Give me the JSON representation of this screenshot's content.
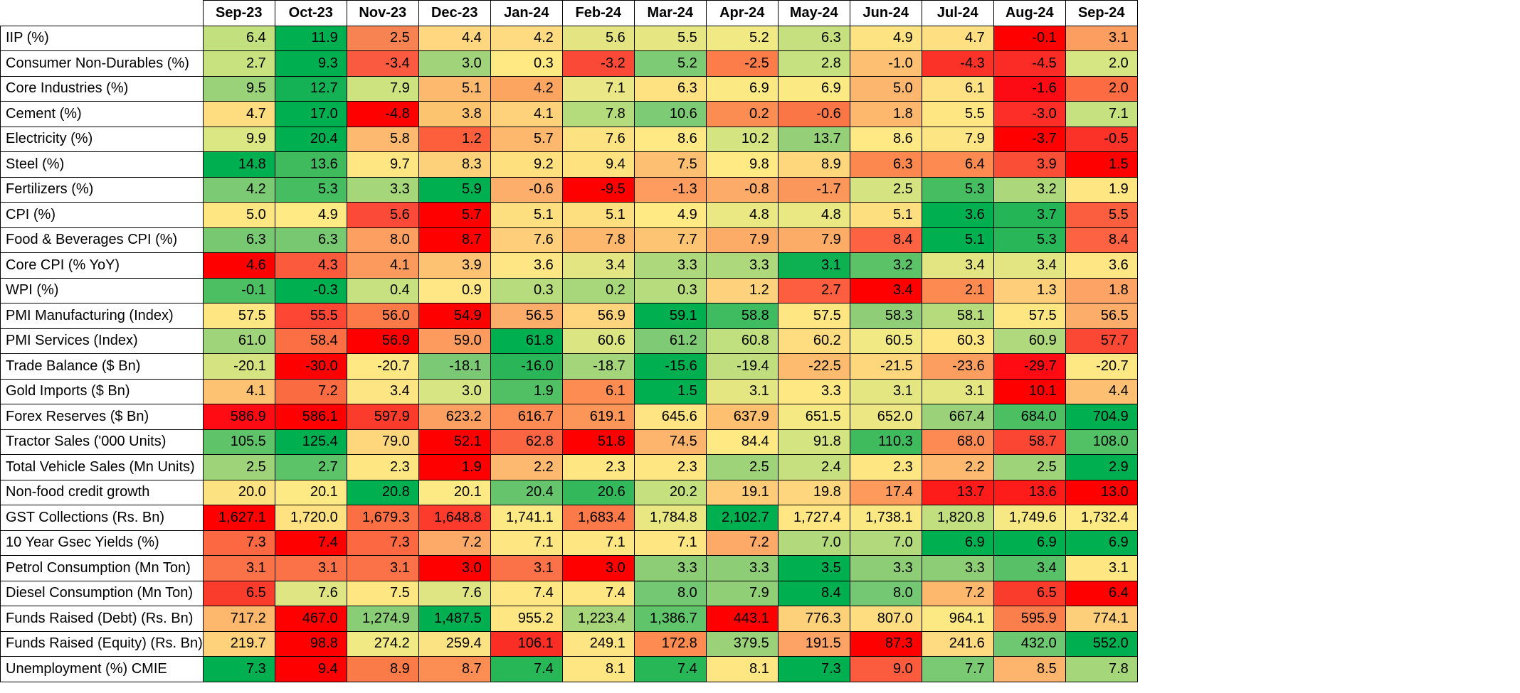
{
  "chart_data": {
    "type": "heatmap",
    "columns": [
      "Sep-23",
      "Oct-23",
      "Nov-23",
      "Dec-23",
      "Jan-24",
      "Feb-24",
      "Mar-24",
      "Apr-24",
      "May-24",
      "Jun-24",
      "Jul-24",
      "Aug-24",
      "Sep-24"
    ],
    "rows": [
      {
        "label": "IIP (%)",
        "values": [
          "6.4",
          "11.9",
          "2.5",
          "4.4",
          "4.2",
          "5.6",
          "5.5",
          "5.2",
          "6.3",
          "4.9",
          "4.7",
          "-0.1",
          "3.1"
        ],
        "colors": [
          "#c3e07f",
          "#00b050",
          "#f88352",
          "#fed780",
          "#fedb80",
          "#e4e582",
          "#e6e682",
          "#f0e984",
          "#c6e07f",
          "#fee382",
          "#fee082",
          "#ff0000",
          "#fb9e60"
        ]
      },
      {
        "label": "Consumer Non-Durables (%)",
        "values": [
          "2.7",
          "9.3",
          "-3.4",
          "3.0",
          "0.3",
          "-3.2",
          "5.2",
          "-2.5",
          "2.8",
          "-1.0",
          "-4.3",
          "-4.5",
          "2.0"
        ],
        "colors": [
          "#c8e280",
          "#00b050",
          "#fa5a3f",
          "#a1d47a",
          "#fee983",
          "#fa4a37",
          "#7ecb75",
          "#fc7c4a",
          "#c6e180",
          "#fdbf71",
          "#fb3228",
          "#fb2b25",
          "#d6e682"
        ]
      },
      {
        "label": "Core Industries (%)",
        "values": [
          "9.5",
          "12.7",
          "7.9",
          "5.1",
          "4.2",
          "7.1",
          "6.3",
          "6.9",
          "6.9",
          "5.0",
          "6.1",
          "-1.6",
          "2.0"
        ],
        "colors": [
          "#99d278",
          "#14b254",
          "#cce380",
          "#fdba6f",
          "#fba561",
          "#eae886",
          "#fee282",
          "#fbe983",
          "#fbe983",
          "#fdb66d",
          "#fee182",
          "#fd0b14",
          "#fc6b42"
        ]
      },
      {
        "label": "Cement (%)",
        "values": [
          "4.7",
          "17.0",
          "-4.8",
          "3.8",
          "4.1",
          "7.8",
          "10.6",
          "0.2",
          "-0.6",
          "1.8",
          "5.5",
          "-3.0",
          "7.1"
        ],
        "colors": [
          "#fedd80",
          "#00b050",
          "#ff0000",
          "#fdc470",
          "#fed27b",
          "#b4db7c",
          "#7ecb75",
          "#fb8c52",
          "#fa7647",
          "#fdb86e",
          "#fee783",
          "#fc2e27",
          "#c5e180"
        ]
      },
      {
        "label": "Electricity (%)",
        "values": [
          "9.9",
          "20.4",
          "5.8",
          "1.2",
          "5.7",
          "7.6",
          "8.6",
          "10.2",
          "13.7",
          "8.6",
          "7.9",
          "-3.7",
          "-0.5"
        ],
        "colors": [
          "#dbe782",
          "#00b050",
          "#fdb96f",
          "#fd5f3d",
          "#fdb86e",
          "#fde282",
          "#fee984",
          "#d3e480",
          "#95d078",
          "#fee984",
          "#fee583",
          "#ff0000",
          "#fb3228"
        ]
      },
      {
        "label": "Steel (%)",
        "values": [
          "14.8",
          "13.6",
          "9.7",
          "8.3",
          "9.2",
          "9.4",
          "7.5",
          "9.8",
          "8.9",
          "6.3",
          "6.4",
          "3.9",
          "1.5"
        ],
        "colors": [
          "#00b050",
          "#3fbb5e",
          "#fee783",
          "#fdd07a",
          "#fee07f",
          "#fee280",
          "#fdbf71",
          "#ffea84",
          "#fed77d",
          "#fc8850",
          "#fc8a51",
          "#fa4e37",
          "#ff0000"
        ]
      },
      {
        "label": "Fertilizers (%)",
        "values": [
          "4.2",
          "5.3",
          "3.3",
          "5.9",
          "-0.6",
          "-9.5",
          "-1.3",
          "-0.8",
          "-1.7",
          "2.5",
          "5.3",
          "3.2",
          "1.9"
        ],
        "colors": [
          "#7cca74",
          "#45bd60",
          "#a5d67a",
          "#00b050",
          "#fdae6a",
          "#ff0000",
          "#fd9c5e",
          "#fdab68",
          "#fc975c",
          "#d5e480",
          "#45bd60",
          "#acd77b",
          "#fee783"
        ]
      },
      {
        "label": "CPI (%)",
        "values": [
          "5.0",
          "4.9",
          "5.6",
          "5.7",
          "5.1",
          "5.1",
          "4.9",
          "4.8",
          "4.8",
          "5.1",
          "3.6",
          "3.7",
          "5.5"
        ],
        "colors": [
          "#fee783",
          "#ffea84",
          "#fb4a38",
          "#ff0000",
          "#fedf80",
          "#fedf80",
          "#ffea84",
          "#eae882",
          "#eae882",
          "#fedf80",
          "#00b050",
          "#24b557",
          "#fa5e3f"
        ]
      },
      {
        "label": "Food & Beverages CPI (%)",
        "values": [
          "6.3",
          "6.3",
          "8.0",
          "8.7",
          "7.6",
          "7.8",
          "7.7",
          "7.9",
          "7.9",
          "8.4",
          "5.1",
          "5.3",
          "8.4"
        ],
        "colors": [
          "#78c872",
          "#78c872",
          "#fc9f60",
          "#ff0000",
          "#fece7b",
          "#fdb86e",
          "#fdc474",
          "#fdac68",
          "#fdac68",
          "#fd6242",
          "#00b050",
          "#29b658",
          "#fd6242"
        ]
      },
      {
        "label": "Core CPI (% YoY)",
        "values": [
          "4.6",
          "4.3",
          "4.1",
          "3.9",
          "3.6",
          "3.4",
          "3.3",
          "3.3",
          "3.1",
          "3.2",
          "3.4",
          "3.4",
          "3.6"
        ],
        "colors": [
          "#ff0000",
          "#fb5a3d",
          "#fc9a5d",
          "#fdc272",
          "#fee684",
          "#e3e582",
          "#aed87c",
          "#aed87c",
          "#0eb152",
          "#5bc268",
          "#e3e582",
          "#e3e582",
          "#fee684"
        ]
      },
      {
        "label": "WPI (%)",
        "values": [
          "-0.1",
          "-0.3",
          "0.4",
          "0.9",
          "0.3",
          "0.2",
          "0.3",
          "1.2",
          "2.7",
          "3.4",
          "2.1",
          "1.3",
          "1.8"
        ],
        "colors": [
          "#4dbf63",
          "#00b050",
          "#c7e180",
          "#fee784",
          "#b7dc7d",
          "#a8d67a",
          "#b7dc7d",
          "#fed27c",
          "#fc5e3f",
          "#ff0000",
          "#fc8a51",
          "#fece7a",
          "#fda365"
        ]
      },
      {
        "label": "PMI Manufacturing (Index)",
        "values": [
          "57.5",
          "55.5",
          "56.0",
          "54.9",
          "56.5",
          "56.9",
          "59.1",
          "58.8",
          "57.5",
          "58.3",
          "58.1",
          "57.5",
          "56.5"
        ],
        "colors": [
          "#fee783",
          "#fd4633",
          "#fb7a48",
          "#ff0000",
          "#fcad69",
          "#fed47c",
          "#00b050",
          "#3ebc5f",
          "#fee783",
          "#8fce76",
          "#b6db7c",
          "#fee783",
          "#fcad69"
        ]
      },
      {
        "label": "PMI Services (Index)",
        "values": [
          "61.0",
          "58.4",
          "56.9",
          "59.0",
          "61.8",
          "60.6",
          "61.2",
          "60.8",
          "60.2",
          "60.5",
          "60.3",
          "60.9",
          "57.7"
        ],
        "colors": [
          "#a0d47a",
          "#fc6f44",
          "#ff0000",
          "#fc9b5d",
          "#00b050",
          "#dbe682",
          "#7fcb75",
          "#c0df7f",
          "#fedd80",
          "#f0e984",
          "#fee683",
          "#b0d87c",
          "#fb4834"
        ]
      },
      {
        "label": "Trade Balance ($ Bn)",
        "values": [
          "-20.1",
          "-30.0",
          "-20.7",
          "-18.1",
          "-16.0",
          "-18.7",
          "-15.6",
          "-19.4",
          "-22.5",
          "-21.5",
          "-23.6",
          "-29.7",
          "-20.7"
        ],
        "colors": [
          "#d6e381",
          "#ff0000",
          "#fde883",
          "#7bc974",
          "#2ab558",
          "#a4d57a",
          "#00b050",
          "#c0de7e",
          "#fdbb6f",
          "#fed67c",
          "#fc9e60",
          "#fe0b14",
          "#fde883"
        ]
      },
      {
        "label": "Gold Imports ($ Bn)",
        "values": [
          "4.1",
          "7.2",
          "3.4",
          "3.0",
          "1.9",
          "6.1",
          "1.5",
          "3.1",
          "3.3",
          "3.1",
          "3.1",
          "10.1",
          "4.4"
        ],
        "colors": [
          "#fdc372",
          "#fb6b42",
          "#fee583",
          "#d7e582",
          "#51c065",
          "#fd8c53",
          "#00b050",
          "#e4e682",
          "#fde883",
          "#e4e682",
          "#e4e682",
          "#ff0000",
          "#fdbf71"
        ]
      },
      {
        "label": "Forex Reserves ($ Bn)",
        "values": [
          "586.9",
          "586.1",
          "597.9",
          "623.2",
          "616.7",
          "619.1",
          "645.6",
          "637.9",
          "651.5",
          "652.0",
          "667.4",
          "684.0",
          "704.9"
        ],
        "colors": [
          "#fe0b14",
          "#ff0000",
          "#fb3c2c",
          "#fca061",
          "#fc8c53",
          "#fc9558",
          "#fee483",
          "#fdc070",
          "#f4e983",
          "#ece783",
          "#9bd279",
          "#4dbf63",
          "#00b050"
        ]
      },
      {
        "label": "Tractor Sales ('000 Units)",
        "values": [
          "105.5",
          "125.4",
          "79.0",
          "52.1",
          "62.8",
          "51.8",
          "74.5",
          "84.4",
          "91.8",
          "110.3",
          "68.0",
          "58.7",
          "108.0"
        ],
        "colors": [
          "#5fc36a",
          "#00b050",
          "#fed77d",
          "#ff0000",
          "#fb6541",
          "#ff0000",
          "#fdb56d",
          "#fee983",
          "#d4e480",
          "#3fbb5e",
          "#fd8a52",
          "#fb4634",
          "#52c065"
        ]
      },
      {
        "label": "Total Vehicle Sales (Mn Units)",
        "values": [
          "2.5",
          "2.7",
          "2.3",
          "1.9",
          "2.2",
          "2.3",
          "2.3",
          "2.5",
          "2.4",
          "2.3",
          "2.2",
          "2.5",
          "2.9"
        ],
        "colors": [
          "#9ed379",
          "#5dc369",
          "#fee783",
          "#ff0000",
          "#fdb96f",
          "#fee783",
          "#fee783",
          "#9ed379",
          "#c6e07f",
          "#fee783",
          "#fdb96f",
          "#9ed379",
          "#00b050"
        ]
      },
      {
        "label": "Non-food credit growth",
        "values": [
          "20.0",
          "20.1",
          "20.8",
          "20.1",
          "20.4",
          "20.6",
          "20.2",
          "19.1",
          "19.8",
          "17.4",
          "13.7",
          "13.6",
          "13.0"
        ],
        "colors": [
          "#fde282",
          "#fdea84",
          "#00b050",
          "#fdea84",
          "#66c56c",
          "#33b95b",
          "#c4e07f",
          "#fecb79",
          "#fed67d",
          "#fd9a5c",
          "#fd1c1a",
          "#fd1c1a",
          "#ff0000"
        ]
      },
      {
        "label": "GST Collections (Rs. Bn)",
        "values": [
          "1,627.1",
          "1,720.0",
          "1,679.3",
          "1,648.8",
          "1,741.1",
          "1,683.4",
          "1,784.8",
          "2,102.7",
          "1,727.4",
          "1,738.1",
          "1,820.8",
          "1,749.6",
          "1,732.4"
        ],
        "colors": [
          "#ff0000",
          "#fee282",
          "#fc6f44",
          "#fd3b2c",
          "#fde984",
          "#fc7949",
          "#e8e782",
          "#00b050",
          "#fee683",
          "#fae983",
          "#c2df7f",
          "#f6e984",
          "#feea84"
        ]
      },
      {
        "label": "10 Year Gsec Yields (%)",
        "values": [
          "7.3",
          "7.4",
          "7.3",
          "7.2",
          "7.1",
          "7.1",
          "7.1",
          "7.2",
          "7.0",
          "7.0",
          "6.9",
          "6.9",
          "6.9"
        ],
        "colors": [
          "#fc6842",
          "#ff0000",
          "#fc6842",
          "#fdaa68",
          "#fee783",
          "#fee783",
          "#fee783",
          "#fdaa68",
          "#b2d97c",
          "#b2d97c",
          "#00b050",
          "#00b050",
          "#00b050"
        ]
      },
      {
        "label": "Petrol Consumption (Mn Ton)",
        "values": [
          "3.1",
          "3.1",
          "3.1",
          "3.0",
          "3.1",
          "3.0",
          "3.3",
          "3.3",
          "3.5",
          "3.3",
          "3.3",
          "3.4",
          "3.1"
        ],
        "colors": [
          "#fc7248",
          "#fc7248",
          "#fc7248",
          "#ff0000",
          "#fc7248",
          "#ff0000",
          "#8dcd76",
          "#8dcd76",
          "#00b050",
          "#8dcd76",
          "#8dcd76",
          "#58c167",
          "#fee783"
        ]
      },
      {
        "label": "Diesel Consumption (Mn Ton)",
        "values": [
          "6.5",
          "7.6",
          "7.5",
          "7.6",
          "7.4",
          "7.4",
          "8.0",
          "7.9",
          "8.4",
          "8.0",
          "7.2",
          "6.5",
          "6.4"
        ],
        "colors": [
          "#fa3c2d",
          "#dfe582",
          "#fee683",
          "#dfe582",
          "#fee683",
          "#fee683",
          "#74c873",
          "#91cf77",
          "#00b050",
          "#74c873",
          "#fdb86e",
          "#fa3c2d",
          "#ff0000"
        ]
      },
      {
        "label": "Funds Raised (Debt) (Rs. Bn)",
        "values": [
          "717.2",
          "467.0",
          "1,274.9",
          "1,487.5",
          "955.2",
          "1,223.4",
          "1,386.7",
          "443.1",
          "776.3",
          "807.0",
          "964.1",
          "595.9",
          "774.1"
        ],
        "colors": [
          "#fdb86e",
          "#ff0000",
          "#89cd76",
          "#00b050",
          "#fee783",
          "#a7d67a",
          "#60c46a",
          "#ff0000",
          "#fdd07a",
          "#fedc80",
          "#fde984",
          "#fb7f4c",
          "#fdcf7a"
        ]
      },
      {
        "label": "Funds Raised (Equity) (Rs. Bn)",
        "values": [
          "219.7",
          "98.8",
          "274.2",
          "259.4",
          "106.1",
          "249.1",
          "172.8",
          "379.5",
          "191.5",
          "87.3",
          "241.6",
          "432.0",
          "552.0"
        ],
        "colors": [
          "#fdd27b",
          "#ff0000",
          "#f1e984",
          "#fbe283",
          "#fb2e26",
          "#fee583",
          "#fd8b52",
          "#9bd279",
          "#fda366",
          "#ff0000",
          "#fedb80",
          "#6ec771",
          "#00b050"
        ]
      },
      {
        "label": "Unemployment (%) CMIE",
        "values": [
          "7.3",
          "9.4",
          "8.9",
          "8.7",
          "7.4",
          "8.1",
          "7.4",
          "8.1",
          "7.3",
          "9.0",
          "7.7",
          "8.5",
          "7.8"
        ],
        "colors": [
          "#00b050",
          "#ff0000",
          "#fb7b48",
          "#fc8e53",
          "#28b757",
          "#fee683",
          "#28b757",
          "#fee683",
          "#00b050",
          "#fc5c3e",
          "#7aca74",
          "#fdb56d",
          "#a6d67a"
        ]
      }
    ]
  }
}
